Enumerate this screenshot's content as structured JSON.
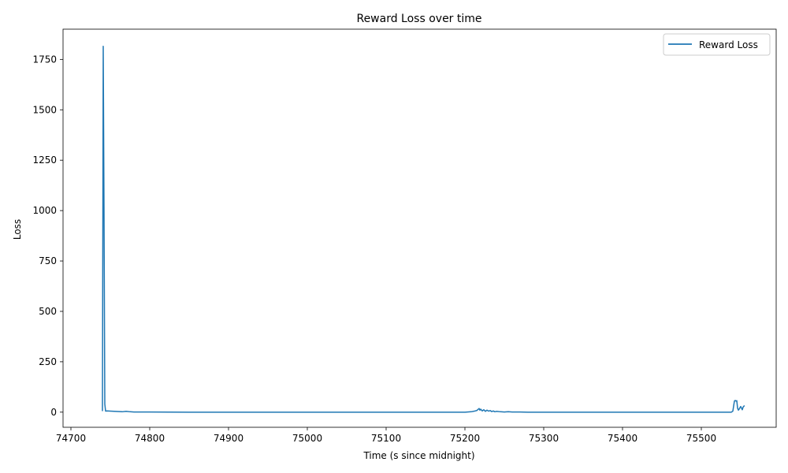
{
  "chart_data": {
    "type": "line",
    "title": "Reward Loss over time",
    "xlabel": "Time (s since midnight)",
    "ylabel": "Loss",
    "xlim": [
      74690,
      75595
    ],
    "ylim": [
      -75,
      1900
    ],
    "xticks": [
      74700,
      74800,
      74900,
      75000,
      75100,
      75200,
      75300,
      75400,
      75500
    ],
    "yticks": [
      0,
      250,
      500,
      750,
      1000,
      1250,
      1500,
      1750
    ],
    "xtick_labels": [
      "74700",
      "74800",
      "74900",
      "75000",
      "75100",
      "75200",
      "75300",
      "75400",
      "75500"
    ],
    "ytick_labels": [
      "0",
      "250",
      "500",
      "750",
      "1000",
      "1250",
      "1500",
      "1750"
    ],
    "grid": false,
    "legend_position": "top-right",
    "series": [
      {
        "name": "Reward Loss",
        "color": "#1f77b4",
        "x": [
          74740,
          74741,
          74742,
          74743,
          74744,
          74746,
          74750,
          74755,
          74760,
          74765,
          74770,
          74775,
          74780,
          74790,
          74800,
          74850,
          74900,
          75000,
          75100,
          75150,
          75200,
          75208,
          75212,
          75215,
          75218,
          75219,
          75220,
          75222,
          75224,
          75226,
          75228,
          75230,
          75232,
          75234,
          75236,
          75238,
          75240,
          75245,
          75250,
          75255,
          75260,
          75270,
          75280,
          75300,
          75400,
          75500,
          75538,
          75540,
          75541,
          75542,
          75543,
          75544,
          75545,
          75546,
          75547,
          75548,
          75549,
          75550,
          75551,
          75552,
          75553,
          75554,
          75555
        ],
        "y": [
          5,
          1815,
          1000,
          40,
          5,
          6,
          5,
          4,
          3,
          2,
          4,
          2,
          1,
          1,
          1,
          0,
          0,
          0,
          0,
          0,
          0,
          2,
          5,
          8,
          18,
          10,
          15,
          6,
          12,
          4,
          10,
          5,
          8,
          3,
          6,
          2,
          4,
          2,
          1,
          2,
          1,
          1,
          0,
          0,
          0,
          0,
          0,
          5,
          30,
          55,
          58,
          55,
          57,
          20,
          10,
          15,
          22,
          28,
          20,
          12,
          25,
          30,
          32
        ]
      }
    ]
  }
}
